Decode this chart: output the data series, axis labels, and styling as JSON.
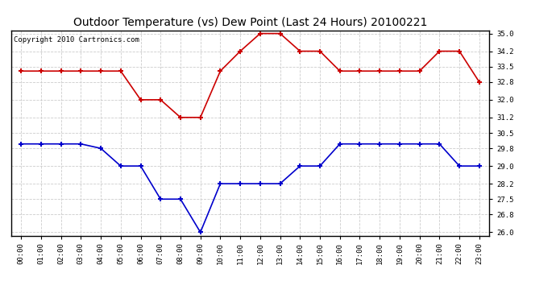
{
  "title": "Outdoor Temperature (vs) Dew Point (Last 24 Hours) 20100221",
  "copyright": "Copyright 2010 Cartronics.com",
  "hours": [
    "00:00",
    "01:00",
    "02:00",
    "03:00",
    "04:00",
    "05:00",
    "06:00",
    "07:00",
    "08:00",
    "09:00",
    "10:00",
    "11:00",
    "12:00",
    "13:00",
    "14:00",
    "15:00",
    "16:00",
    "17:00",
    "18:00",
    "19:00",
    "20:00",
    "21:00",
    "22:00",
    "23:00"
  ],
  "temp": [
    33.3,
    33.3,
    33.3,
    33.3,
    33.3,
    33.3,
    32.0,
    32.0,
    31.2,
    31.2,
    33.3,
    34.2,
    35.0,
    35.0,
    34.2,
    34.2,
    33.3,
    33.3,
    33.3,
    33.3,
    33.3,
    34.2,
    34.2,
    32.8
  ],
  "dew": [
    30.0,
    30.0,
    30.0,
    30.0,
    29.8,
    29.0,
    29.0,
    27.5,
    27.5,
    26.0,
    28.2,
    28.2,
    28.2,
    28.2,
    29.0,
    29.0,
    30.0,
    30.0,
    30.0,
    30.0,
    30.0,
    30.0,
    29.0,
    29.0
  ],
  "temp_color": "#cc0000",
  "dew_color": "#0000cc",
  "marker": "+",
  "markersize": 5,
  "markeredgewidth": 1.5,
  "linewidth": 1.2,
  "ylim": [
    25.85,
    35.15
  ],
  "yticks": [
    26.0,
    26.8,
    27.5,
    28.2,
    29.0,
    29.8,
    30.5,
    31.2,
    32.0,
    32.8,
    33.5,
    34.2,
    35.0
  ],
  "grid_color": "#cccccc",
  "background_color": "#ffffff",
  "title_fontsize": 10,
  "copyright_fontsize": 6.5,
  "tick_fontsize": 6.5
}
